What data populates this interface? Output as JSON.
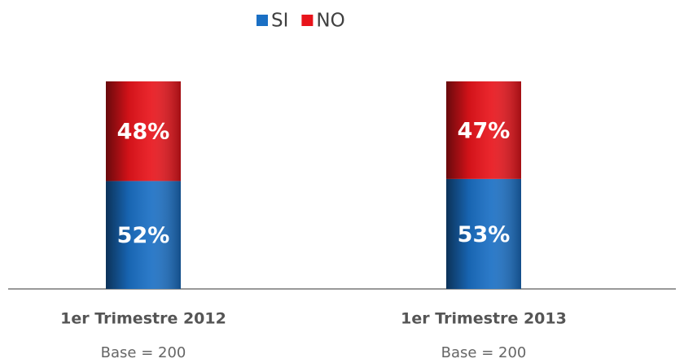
{
  "chart_data": {
    "type": "stacked_bar",
    "categories": [
      "1er Trimestre 2012",
      "1er Trimestre 2013"
    ],
    "category_notes": [
      "Base = 200",
      "Base = 200"
    ],
    "series": [
      {
        "name": "SI",
        "color": "#1a6fc4",
        "values": [
          52,
          53
        ],
        "value_labels": [
          "52%",
          "53%"
        ]
      },
      {
        "name": "NO",
        "color": "#e8141b",
        "values": [
          48,
          47
        ],
        "value_labels": [
          "48%",
          "47%"
        ]
      }
    ],
    "legend": "top"
  }
}
